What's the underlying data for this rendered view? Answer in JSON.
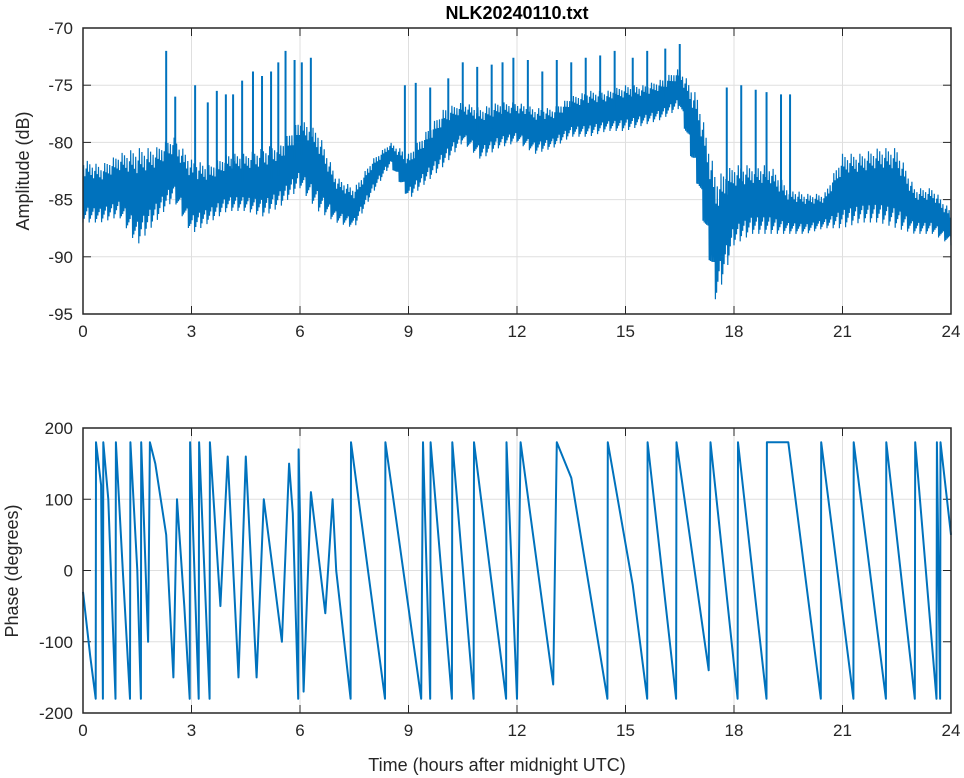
{
  "chart_data": [
    {
      "type": "line",
      "title": "NLK20240110.txt",
      "xlabel": "",
      "ylabel": "Amplitude (dB)",
      "xlim": [
        0,
        24
      ],
      "ylim": [
        -95,
        -70
      ],
      "xticks": [
        "0",
        "3",
        "6",
        "9",
        "12",
        "15",
        "18",
        "21",
        "24"
      ],
      "yticks": [
        "-70",
        "-75",
        "-80",
        "-85",
        "-90",
        "-95"
      ],
      "grid": true,
      "color": "#0072bd",
      "x": [
        0,
        0.5,
        1,
        1.5,
        2,
        2.5,
        3,
        3.5,
        4,
        4.5,
        5,
        5.5,
        6,
        6.5,
        7,
        7.5,
        8,
        8.5,
        9,
        9.5,
        10,
        10.5,
        11,
        11.5,
        12,
        12.5,
        13,
        13.5,
        14,
        14.5,
        15,
        15.5,
        16,
        16.5,
        17,
        17.5,
        18,
        18.5,
        19,
        19.5,
        20,
        20.5,
        21,
        21.5,
        22,
        22.5,
        23,
        23.5,
        24
      ],
      "upper": [
        -81.5,
        -82,
        -81,
        -80.5,
        -80.5,
        -79.5,
        -81.5,
        -82,
        -81,
        -81,
        -80.5,
        -80,
        -78,
        -79,
        -83,
        -84,
        -81.5,
        -80,
        -81,
        -79,
        -77,
        -76.5,
        -77,
        -76.5,
        -76.5,
        -77,
        -77,
        -76,
        -75.5,
        -75.5,
        -75,
        -75,
        -74.5,
        -73.5,
        -76,
        -83,
        -82,
        -82,
        -82,
        -84,
        -84.5,
        -84.5,
        -81,
        -81,
        -80.5,
        -80.5,
        -84,
        -84,
        -86
      ],
      "lower": [
        -87,
        -87,
        -86.5,
        -89,
        -87,
        -85,
        -88,
        -87,
        -86,
        -86,
        -86.5,
        -85.5,
        -84,
        -86,
        -87,
        -87.5,
        -84.5,
        -82,
        -85,
        -83.5,
        -82,
        -80,
        -81.5,
        -80.5,
        -80,
        -81,
        -80.5,
        -79.5,
        -79.5,
        -79,
        -79,
        -78.5,
        -78,
        -77,
        -84,
        -94,
        -89,
        -88,
        -88,
        -88,
        -88,
        -87.5,
        -87.5,
        -87,
        -87,
        -87.5,
        -88,
        -88,
        -89
      ],
      "spikes": [
        [
          2.3,
          -72
        ],
        [
          2.55,
          -76
        ],
        [
          3.1,
          -75
        ],
        [
          3.45,
          -76.5
        ],
        [
          3.7,
          -75.5
        ],
        [
          3.95,
          -75.8
        ],
        [
          4.15,
          -75.8
        ],
        [
          4.4,
          -74.6
        ],
        [
          4.7,
          -73.8
        ],
        [
          4.95,
          -74.2
        ],
        [
          5.2,
          -73.8
        ],
        [
          5.4,
          -73
        ],
        [
          5.6,
          -72
        ],
        [
          5.85,
          -72.8
        ],
        [
          6.05,
          -73
        ],
        [
          6.3,
          -72.6
        ],
        [
          8.9,
          -75
        ],
        [
          9.2,
          -74.8
        ],
        [
          9.6,
          -75.2
        ],
        [
          10.1,
          -74.4
        ],
        [
          10.5,
          -73
        ],
        [
          10.9,
          -73.4
        ],
        [
          11.3,
          -73.2
        ],
        [
          11.6,
          -73
        ],
        [
          11.9,
          -72.6
        ],
        [
          12.3,
          -72.8
        ],
        [
          12.7,
          -73.8
        ],
        [
          13.1,
          -72.8
        ],
        [
          13.5,
          -73
        ],
        [
          13.9,
          -72.6
        ],
        [
          14.3,
          -72.4
        ],
        [
          14.7,
          -72
        ],
        [
          15.2,
          -72.6
        ],
        [
          15.6,
          -72
        ],
        [
          16.1,
          -71.8
        ],
        [
          16.5,
          -71.4
        ],
        [
          17.8,
          -75.2
        ],
        [
          18.2,
          -75
        ],
        [
          18.6,
          -75.4
        ],
        [
          18.9,
          -75.6
        ],
        [
          19.3,
          -75.8
        ],
        [
          19.55,
          -75.8
        ]
      ],
      "yaxis_map": "amp"
    },
    {
      "type": "line",
      "title": "",
      "xlabel": "Time (hours after midnight UTC)",
      "ylabel": "Phase (degrees)",
      "xlim": [
        0,
        24
      ],
      "ylim": [
        -200,
        200
      ],
      "xticks": [
        "0",
        "3",
        "6",
        "9",
        "12",
        "15",
        "18",
        "21",
        "24"
      ],
      "yticks": [
        "200",
        "100",
        "0",
        "-100",
        "-200"
      ],
      "grid": true,
      "color": "#0072bd",
      "points": [
        [
          0,
          -30
        ],
        [
          0.2,
          -120
        ],
        [
          0.35,
          -180
        ],
        [
          0.36,
          180
        ],
        [
          0.5,
          120
        ],
        [
          0.55,
          -180
        ],
        [
          0.56,
          180
        ],
        [
          0.7,
          100
        ],
        [
          0.9,
          -180
        ],
        [
          0.91,
          180
        ],
        [
          1.1,
          0
        ],
        [
          1.3,
          -180
        ],
        [
          1.31,
          180
        ],
        [
          1.5,
          0
        ],
        [
          1.6,
          -180
        ],
        [
          1.61,
          180
        ],
        [
          1.8,
          -100
        ],
        [
          1.85,
          180
        ],
        [
          2.0,
          150
        ],
        [
          2.3,
          50
        ],
        [
          2.5,
          -150
        ],
        [
          2.6,
          100
        ],
        [
          2.8,
          -50
        ],
        [
          2.95,
          -180
        ],
        [
          2.96,
          180
        ],
        [
          3.2,
          -180
        ],
        [
          3.21,
          180
        ],
        [
          3.5,
          -180
        ],
        [
          3.51,
          180
        ],
        [
          3.8,
          -50
        ],
        [
          4.0,
          160
        ],
        [
          4.3,
          -150
        ],
        [
          4.5,
          160
        ],
        [
          4.8,
          -150
        ],
        [
          5.0,
          100
        ],
        [
          5.3,
          -20
        ],
        [
          5.5,
          -100
        ],
        [
          5.7,
          150
        ],
        [
          5.8,
          80
        ],
        [
          5.95,
          -180
        ],
        [
          5.96,
          170
        ],
        [
          6.1,
          -170
        ],
        [
          6.3,
          110
        ],
        [
          6.7,
          -60
        ],
        [
          6.9,
          100
        ],
        [
          7.0,
          0
        ],
        [
          7.4,
          -180
        ],
        [
          7.41,
          180
        ],
        [
          8.35,
          -180
        ],
        [
          8.36,
          180
        ],
        [
          9.35,
          -180
        ],
        [
          9.4,
          180
        ],
        [
          9.6,
          -180
        ],
        [
          9.61,
          180
        ],
        [
          10.2,
          -180
        ],
        [
          10.21,
          180
        ],
        [
          10.8,
          -180
        ],
        [
          10.81,
          180
        ],
        [
          11.7,
          -180
        ],
        [
          11.71,
          180
        ],
        [
          12.0,
          -180
        ],
        [
          12.1,
          180
        ],
        [
          13.0,
          -160
        ],
        [
          13.1,
          180
        ],
        [
          13.5,
          130
        ],
        [
          14.5,
          -180
        ],
        [
          14.51,
          180
        ],
        [
          15.2,
          -20
        ],
        [
          15.6,
          -180
        ],
        [
          15.61,
          180
        ],
        [
          16.4,
          -180
        ],
        [
          16.41,
          180
        ],
        [
          17.3,
          -140
        ],
        [
          17.35,
          180
        ],
        [
          18.1,
          -180
        ],
        [
          18.11,
          180
        ],
        [
          18.9,
          -180
        ],
        [
          18.91,
          180
        ],
        [
          19.5,
          180
        ],
        [
          20.4,
          -180
        ],
        [
          20.41,
          180
        ],
        [
          21.3,
          -180
        ],
        [
          21.31,
          180
        ],
        [
          22.2,
          -180
        ],
        [
          22.21,
          180
        ],
        [
          23.0,
          -180
        ],
        [
          23.01,
          180
        ],
        [
          23.6,
          -180
        ],
        [
          23.61,
          180
        ],
        [
          23.7,
          -180
        ],
        [
          23.71,
          180
        ],
        [
          24,
          50
        ]
      ]
    }
  ]
}
